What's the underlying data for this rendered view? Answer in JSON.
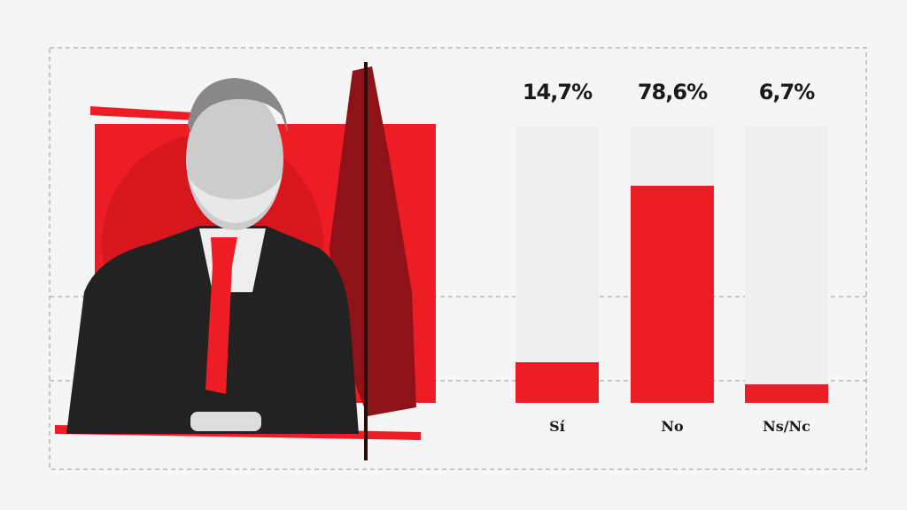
{
  "chart_data": {
    "type": "bar",
    "categories": [
      "Sí",
      "No",
      "Ns/Nc"
    ],
    "values": [
      14.7,
      78.6,
      6.7
    ],
    "value_labels": [
      "14,7%",
      "78,6%",
      "6,7%"
    ],
    "color": "#ee1c25",
    "track_color": "#efefef",
    "ylim": [
      0,
      100
    ]
  }
}
